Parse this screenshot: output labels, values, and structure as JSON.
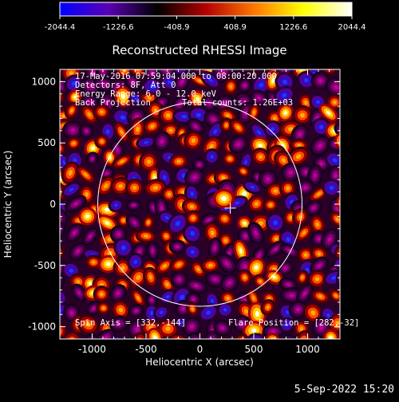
{
  "chart_data": {
    "type": "heatmap",
    "title": "Reconstructed RHESSI Image",
    "xlabel": "Heliocentric X (arcsec)",
    "ylabel": "Heliocentric Y (arcsec)",
    "xlim": [
      -1300,
      1300
    ],
    "ylim": [
      -1100,
      1100
    ],
    "xticks": [
      -1000,
      -500,
      0,
      500,
      1000
    ],
    "yticks": [
      -1000,
      -500,
      0,
      500,
      1000
    ],
    "colorbar": {
      "min": -2044.4,
      "max": 2044.4,
      "ticks": [
        "-2044.4",
        "-1226.6",
        "-408.9",
        "408.9",
        "1226.6",
        "2044.4"
      ],
      "colormap": [
        "#0000ff",
        "#5a00b4",
        "#000000",
        "#b40000",
        "#ff7800",
        "#ffff00",
        "#ffffff"
      ]
    },
    "annotations": [
      "17-May-2016 07:59:04.000 to 08:00:20.000",
      "Detectors: 8F, Att 0",
      "Energy Range: 6.0 - 12.0 keV",
      "Back Projection",
      "Total counts: 1.26E+03"
    ],
    "spin_axis_text": "Spin Axis = [332,-144]",
    "flare_position_text": "Flare Position = [282,-32]",
    "flare_position": [
      282,
      -32
    ],
    "solar_disk": {
      "center": [
        0,
        0
      ],
      "radius_arcsec": 948
    }
  },
  "footer": {
    "date_stamp": "5-Sep-2022 15:20"
  }
}
